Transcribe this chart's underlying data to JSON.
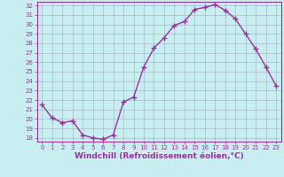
{
  "x": [
    0,
    1,
    2,
    3,
    4,
    5,
    6,
    7,
    8,
    9,
    10,
    11,
    12,
    13,
    14,
    15,
    16,
    17,
    18,
    19,
    20,
    21,
    22,
    23
  ],
  "y": [
    21.5,
    20.1,
    19.6,
    19.8,
    18.3,
    18.0,
    17.85,
    18.3,
    21.8,
    22.3,
    25.5,
    27.5,
    28.6,
    29.9,
    30.3,
    31.6,
    31.8,
    32.1,
    31.5,
    30.6,
    29.0,
    27.4,
    25.5,
    23.5
  ],
  "line_color": "#993399",
  "marker": "+",
  "markersize": 4,
  "linewidth": 1.0,
  "background_color": "#c8eef0",
  "grid_color": "#9999bb",
  "xlabel": "Windchill (Refroidissement éolien,°C)",
  "xlabel_fontsize": 6.5,
  "ylim": [
    17.6,
    32.4
  ],
  "xlim": [
    -0.5,
    23.5
  ],
  "yticks": [
    18,
    19,
    20,
    21,
    22,
    23,
    24,
    25,
    26,
    27,
    28,
    29,
    30,
    31,
    32
  ],
  "xticks": [
    0,
    1,
    2,
    3,
    4,
    5,
    6,
    7,
    8,
    9,
    10,
    11,
    12,
    13,
    14,
    15,
    16,
    17,
    18,
    19,
    20,
    21,
    22,
    23
  ],
  "tick_fontsize": 5.0,
  "tick_color": "#993399",
  "axis_color": "#993399",
  "spine_color": "#993399"
}
